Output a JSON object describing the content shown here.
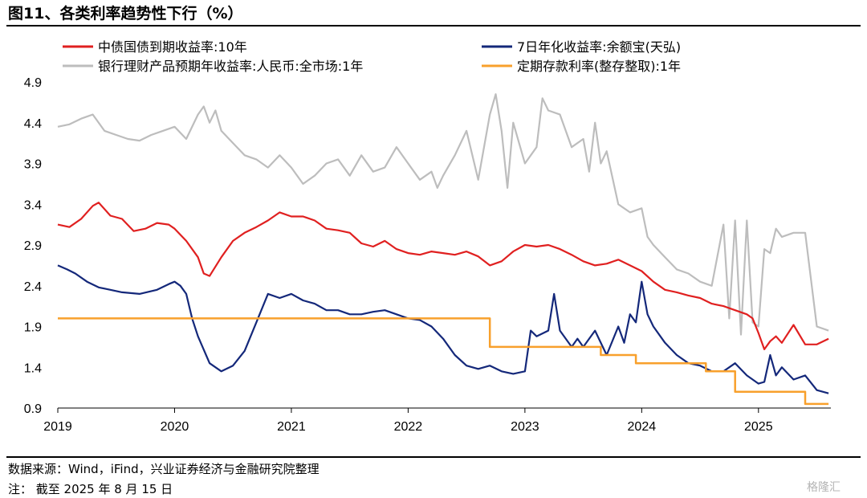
{
  "figure_title": "图11、各类利率趋势性下行（%）",
  "source_text": "数据来源：Wind，iFind，兴业证券经济与金融研究院整理",
  "note_text": "注：  截至 2025 年 8 月 15 日",
  "watermark_text": "格隆汇",
  "chart_data": {
    "type": "line",
    "xlabel": "",
    "ylabel": "",
    "xlim": [
      2019.0,
      2025.62
    ],
    "ylim": [
      0.9,
      4.9
    ],
    "x_ticks": [
      "2019",
      "2020",
      "2021",
      "2022",
      "2023",
      "2024",
      "2025"
    ],
    "y_ticks": [
      "0.9",
      "1.4",
      "1.9",
      "2.4",
      "2.9",
      "3.4",
      "3.9",
      "4.4",
      "4.9"
    ],
    "grid": false,
    "legend_position": "top",
    "series": [
      {
        "name": "中债国债到期收益率:10年",
        "color": "#e02020",
        "x": [
          2019.0,
          2019.1,
          2019.2,
          2019.3,
          2019.35,
          2019.45,
          2019.55,
          2019.65,
          2019.75,
          2019.85,
          2019.95,
          2020.0,
          2020.1,
          2020.2,
          2020.25,
          2020.3,
          2020.4,
          2020.5,
          2020.6,
          2020.7,
          2020.8,
          2020.9,
          2021.0,
          2021.1,
          2021.2,
          2021.3,
          2021.4,
          2021.5,
          2021.6,
          2021.7,
          2021.8,
          2021.9,
          2022.0,
          2022.1,
          2022.2,
          2022.3,
          2022.4,
          2022.5,
          2022.6,
          2022.7,
          2022.8,
          2022.9,
          2023.0,
          2023.1,
          2023.2,
          2023.3,
          2023.4,
          2023.5,
          2023.6,
          2023.7,
          2023.8,
          2023.9,
          2024.0,
          2024.1,
          2024.2,
          2024.3,
          2024.4,
          2024.5,
          2024.6,
          2024.7,
          2024.8,
          2024.9,
          2024.95,
          2025.0,
          2025.05,
          2025.1,
          2025.15,
          2025.2,
          2025.3,
          2025.4,
          2025.5,
          2025.6
        ],
        "values": [
          3.15,
          3.12,
          3.22,
          3.38,
          3.42,
          3.26,
          3.22,
          3.07,
          3.1,
          3.17,
          3.15,
          3.1,
          2.95,
          2.75,
          2.55,
          2.52,
          2.75,
          2.95,
          3.05,
          3.12,
          3.2,
          3.3,
          3.25,
          3.25,
          3.2,
          3.1,
          3.08,
          3.05,
          2.92,
          2.88,
          2.95,
          2.85,
          2.8,
          2.78,
          2.82,
          2.8,
          2.78,
          2.82,
          2.76,
          2.65,
          2.7,
          2.82,
          2.9,
          2.88,
          2.9,
          2.85,
          2.78,
          2.7,
          2.65,
          2.67,
          2.72,
          2.65,
          2.58,
          2.45,
          2.35,
          2.32,
          2.28,
          2.25,
          2.18,
          2.15,
          2.1,
          2.05,
          2.0,
          1.82,
          1.62,
          1.72,
          1.78,
          1.7,
          1.92,
          1.68,
          1.68,
          1.75
        ]
      },
      {
        "name": "7日年化收益率:余额宝(天弘)",
        "color": "#14287a",
        "x": [
          2019.0,
          2019.08,
          2019.15,
          2019.25,
          2019.35,
          2019.45,
          2019.55,
          2019.7,
          2019.85,
          2019.95,
          2020.0,
          2020.05,
          2020.1,
          2020.15,
          2020.2,
          2020.3,
          2020.4,
          2020.5,
          2020.6,
          2020.7,
          2020.8,
          2020.9,
          2021.0,
          2021.1,
          2021.2,
          2021.3,
          2021.4,
          2021.5,
          2021.6,
          2021.7,
          2021.8,
          2021.9,
          2022.0,
          2022.1,
          2022.2,
          2022.3,
          2022.4,
          2022.5,
          2022.6,
          2022.7,
          2022.8,
          2022.9,
          2023.0,
          2023.05,
          2023.1,
          2023.2,
          2023.25,
          2023.3,
          2023.4,
          2023.45,
          2023.5,
          2023.6,
          2023.7,
          2023.8,
          2023.85,
          2023.9,
          2023.95,
          2024.0,
          2024.05,
          2024.1,
          2024.2,
          2024.3,
          2024.4,
          2024.5,
          2024.6,
          2024.7,
          2024.8,
          2024.9,
          2025.0,
          2025.05,
          2025.1,
          2025.15,
          2025.2,
          2025.3,
          2025.4,
          2025.5,
          2025.6
        ],
        "values": [
          2.65,
          2.6,
          2.55,
          2.45,
          2.38,
          2.35,
          2.32,
          2.3,
          2.35,
          2.42,
          2.45,
          2.4,
          2.3,
          2.0,
          1.78,
          1.45,
          1.35,
          1.42,
          1.6,
          1.95,
          2.3,
          2.25,
          2.3,
          2.22,
          2.18,
          2.1,
          2.1,
          2.05,
          2.05,
          2.08,
          2.1,
          2.05,
          2.0,
          1.98,
          1.9,
          1.75,
          1.55,
          1.42,
          1.38,
          1.42,
          1.35,
          1.32,
          1.35,
          1.85,
          1.78,
          1.85,
          2.3,
          1.85,
          1.65,
          1.75,
          1.65,
          1.85,
          1.55,
          1.9,
          1.7,
          2.05,
          1.95,
          2.45,
          2.05,
          1.9,
          1.7,
          1.55,
          1.45,
          1.42,
          1.35,
          1.35,
          1.45,
          1.3,
          1.2,
          1.22,
          1.55,
          1.3,
          1.4,
          1.25,
          1.3,
          1.12,
          1.08
        ]
      },
      {
        "name": "银行理财产品预期年收益率:人民币:全市场:1年",
        "color": "#bdbdbd",
        "x": [
          2019.0,
          2019.1,
          2019.2,
          2019.3,
          2019.4,
          2019.5,
          2019.6,
          2019.7,
          2019.8,
          2019.9,
          2020.0,
          2020.1,
          2020.2,
          2020.25,
          2020.3,
          2020.35,
          2020.4,
          2020.5,
          2020.6,
          2020.7,
          2020.8,
          2020.9,
          2021.0,
          2021.1,
          2021.2,
          2021.3,
          2021.4,
          2021.5,
          2021.6,
          2021.7,
          2021.8,
          2021.9,
          2022.0,
          2022.1,
          2022.2,
          2022.25,
          2022.3,
          2022.4,
          2022.5,
          2022.6,
          2022.7,
          2022.75,
          2022.8,
          2022.85,
          2022.9,
          2023.0,
          2023.1,
          2023.15,
          2023.2,
          2023.3,
          2023.4,
          2023.5,
          2023.55,
          2023.6,
          2023.65,
          2023.7,
          2023.8,
          2023.9,
          2024.0,
          2024.05,
          2024.1,
          2024.2,
          2024.3,
          2024.4,
          2024.5,
          2024.6,
          2024.7,
          2024.75,
          2024.8,
          2024.85,
          2024.9,
          2024.95,
          2025.0,
          2025.05,
          2025.1,
          2025.15,
          2025.2,
          2025.3,
          2025.4,
          2025.5,
          2025.6
        ],
        "values": [
          4.35,
          4.38,
          4.45,
          4.5,
          4.3,
          4.25,
          4.2,
          4.18,
          4.25,
          4.3,
          4.35,
          4.2,
          4.5,
          4.6,
          4.4,
          4.55,
          4.3,
          4.15,
          4.0,
          3.95,
          3.85,
          4.0,
          3.85,
          3.65,
          3.75,
          3.9,
          3.95,
          3.75,
          4.0,
          3.8,
          3.85,
          4.1,
          3.9,
          3.7,
          3.8,
          3.6,
          3.75,
          4.0,
          4.3,
          3.7,
          4.5,
          4.75,
          4.3,
          3.6,
          4.4,
          3.9,
          4.1,
          4.7,
          4.55,
          4.5,
          4.1,
          4.2,
          3.8,
          4.4,
          3.9,
          4.05,
          3.4,
          3.3,
          3.35,
          3.0,
          2.9,
          2.75,
          2.6,
          2.55,
          2.45,
          2.4,
          3.15,
          2.0,
          3.2,
          1.8,
          3.2,
          1.95,
          1.9,
          2.85,
          2.8,
          3.1,
          3.0,
          3.05,
          3.05,
          1.9,
          1.85
        ]
      },
      {
        "name": "定期存款利率(整存整取):1年",
        "color": "#f8a02c",
        "x": [
          2019.0,
          2022.7,
          2022.7,
          2023.65,
          2023.65,
          2023.95,
          2023.95,
          2024.55,
          2024.55,
          2024.8,
          2024.8,
          2025.4,
          2025.4,
          2025.6
        ],
        "values": [
          2.0,
          2.0,
          1.65,
          1.65,
          1.55,
          1.55,
          1.45,
          1.45,
          1.35,
          1.35,
          1.1,
          1.1,
          0.95,
          0.95
        ]
      }
    ]
  }
}
